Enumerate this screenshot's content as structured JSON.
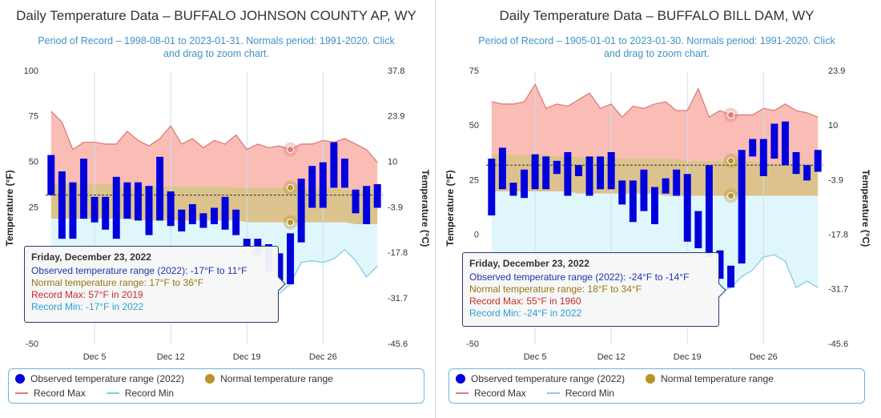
{
  "chart_data": [
    {
      "type": "range",
      "title": "Daily Temperature Data – BUFFALO JOHNSON COUNTY AP, WY",
      "subtitle": "Period of Record – 1998-08-01 to 2023-01-31. Normals period: 1991-2020. Click and drag to zoom chart.",
      "ylabel": "Temperature (°F)",
      "y2label": "Temperature (°C)",
      "categories": [
        null,
        null,
        null,
        null,
        "Dec 5",
        null,
        null,
        null,
        null,
        null,
        null,
        "Dec 12",
        null,
        null,
        null,
        null,
        null,
        null,
        "Dec 19",
        null,
        null,
        null,
        null,
        null,
        null,
        "Dec 26",
        null,
        null,
        null,
        null,
        null
      ],
      "ylim": [
        -50,
        100
      ],
      "yticks": [
        -50,
        -25,
        0,
        25,
        50,
        75,
        100
      ],
      "y2lim": [
        -45.6,
        37.8
      ],
      "y2ticks": [
        -45.6,
        -31.7,
        -17.8,
        -3.9,
        10,
        23.9,
        37.8
      ],
      "xgrid": true,
      "reference_line": 32,
      "series": [
        {
          "name": "Observed temperature range (2022)",
          "color": "#0000dd",
          "values": [
            [
              32,
              54
            ],
            [
              8,
              45
            ],
            [
              8,
              39
            ],
            [
              19,
              52
            ],
            [
              17,
              31
            ],
            [
              13,
              31
            ],
            [
              8,
              42
            ],
            [
              19,
              39
            ],
            [
              18,
              39
            ],
            [
              10,
              37
            ],
            [
              18,
              53
            ],
            [
              15,
              34
            ],
            [
              12,
              24
            ],
            [
              16,
              27
            ],
            [
              14,
              22
            ],
            [
              16,
              25
            ],
            [
              13,
              31
            ],
            [
              10,
              24
            ],
            [
              4,
              8
            ],
            [
              -1,
              8
            ],
            [
              -10,
              5
            ],
            [
              -15,
              0
            ],
            [
              -17,
              11
            ],
            [
              6,
              41
            ],
            [
              25,
              48
            ],
            [
              25,
              50
            ],
            [
              36,
              61
            ],
            [
              36,
              52
            ],
            [
              22,
              35
            ],
            [
              16,
              37
            ],
            [
              25,
              38
            ]
          ]
        },
        {
          "name": "Normal temperature range",
          "color": "#b8922a",
          "fill": "#dcc38d",
          "values": [
            [
              19,
              38
            ],
            [
              19,
              38
            ],
            [
              19,
              38
            ],
            [
              19,
              38
            ],
            [
              19,
              38
            ],
            [
              19,
              38
            ],
            [
              19,
              38
            ],
            [
              19,
              37
            ],
            [
              18,
              37
            ],
            [
              18,
              37
            ],
            [
              18,
              37
            ],
            [
              18,
              37
            ],
            [
              18,
              37
            ],
            [
              18,
              37
            ],
            [
              18,
              37
            ],
            [
              18,
              37
            ],
            [
              18,
              37
            ],
            [
              18,
              36
            ],
            [
              17,
              36
            ],
            [
              17,
              36
            ],
            [
              17,
              36
            ],
            [
              17,
              36
            ],
            [
              17,
              36
            ],
            [
              17,
              36
            ],
            [
              17,
              36
            ],
            [
              17,
              36
            ],
            [
              17,
              36
            ],
            [
              17,
              35
            ],
            [
              16,
              35
            ],
            [
              16,
              35
            ],
            [
              16,
              35
            ]
          ]
        },
        {
          "name": "Record Max",
          "color": "#e07a7a",
          "fill": "#f9bdb6",
          "values": [
            78,
            72,
            57,
            61,
            61,
            60,
            60,
            67,
            62,
            59,
            63,
            70,
            60,
            63,
            58,
            62,
            60,
            65,
            57,
            60,
            58,
            59,
            57,
            60,
            60,
            62,
            61,
            63,
            60,
            57,
            50
          ]
        },
        {
          "name": "Record Min",
          "color": "#86cbe6",
          "fill": "#dff7fb",
          "values": [
            -25,
            -28,
            -30,
            -22,
            -20,
            -26,
            -30,
            -28,
            -24,
            -22,
            -25,
            -30,
            -32,
            -28,
            -26,
            -30,
            -34,
            -32,
            -30,
            -28,
            -25,
            -22,
            -17,
            -5,
            -4,
            -5,
            -3,
            2,
            -4,
            -13,
            -7
          ]
        }
      ],
      "tooltip": {
        "index": 22,
        "title": "Friday, December 23, 2022",
        "lines": [
          "Observed temperature range (2022): -17°F to 11°F",
          "Normal temperature range: 17°F to 36°F",
          "Record Max: 57°F in 2019",
          "Record Min: -17°F in 2022"
        ]
      }
    },
    {
      "type": "range",
      "title": "Daily Temperature Data – BUFFALO BILL DAM, WY",
      "subtitle": "Period of Record – 1905-01-01 to 2023-01-30. Normals period: 1991-2020. Click and drag to zoom chart.",
      "ylabel": "Temperature (°F)",
      "y2label": "Temperature (°C)",
      "categories": [
        null,
        null,
        null,
        null,
        "Dec 5",
        null,
        null,
        null,
        null,
        null,
        null,
        "Dec 12",
        null,
        null,
        null,
        null,
        null,
        null,
        "Dec 19",
        null,
        null,
        null,
        null,
        null,
        null,
        "Dec 26",
        null,
        null,
        null,
        null,
        null
      ],
      "ylim": [
        -50,
        75
      ],
      "yticks": [
        -50,
        -25,
        0,
        25,
        50,
        75
      ],
      "y2lim": [
        -45.6,
        23.9
      ],
      "y2ticks": [
        -45.6,
        -31.7,
        -17.8,
        -3.9,
        10,
        23.9
      ],
      "xgrid": true,
      "reference_line": 32,
      "series": [
        {
          "name": "Observed temperature range (2022)",
          "color": "#0000dd",
          "values": [
            [
              9,
              35
            ],
            [
              21,
              40
            ],
            [
              18,
              24
            ],
            [
              17,
              30
            ],
            [
              21,
              37
            ],
            [
              21,
              36
            ],
            [
              28,
              34
            ],
            [
              18,
              38
            ],
            [
              27,
              32
            ],
            [
              18,
              36
            ],
            [
              21,
              36
            ],
            [
              21,
              38
            ],
            [
              14,
              25
            ],
            [
              6,
              25
            ],
            [
              11,
              30
            ],
            [
              5,
              22
            ],
            [
              19,
              26
            ],
            [
              18,
              30
            ],
            [
              -3,
              28
            ],
            [
              -6,
              11
            ],
            [
              -10,
              32
            ],
            [
              -20,
              -7
            ],
            [
              -24,
              -14
            ],
            [
              -13,
              39
            ],
            [
              36,
              44
            ],
            [
              27,
              44
            ],
            [
              35,
              51
            ],
            [
              32,
              52
            ],
            [
              28,
              38
            ],
            [
              25,
              32
            ],
            [
              29,
              39
            ]
          ]
        },
        {
          "name": "Normal temperature range",
          "color": "#b8922a",
          "fill": "#dcc38d",
          "values": [
            [
              20,
              37
            ],
            [
              20,
              37
            ],
            [
              20,
              37
            ],
            [
              20,
              37
            ],
            [
              20,
              37
            ],
            [
              20,
              37
            ],
            [
              20,
              36
            ],
            [
              20,
              36
            ],
            [
              19,
              36
            ],
            [
              19,
              36
            ],
            [
              19,
              36
            ],
            [
              19,
              36
            ],
            [
              19,
              35
            ],
            [
              19,
              35
            ],
            [
              19,
              35
            ],
            [
              19,
              35
            ],
            [
              18,
              35
            ],
            [
              18,
              35
            ],
            [
              18,
              34
            ],
            [
              18,
              34
            ],
            [
              18,
              34
            ],
            [
              18,
              34
            ],
            [
              18,
              34
            ],
            [
              18,
              34
            ],
            [
              18,
              34
            ],
            [
              18,
              33
            ],
            [
              18,
              33
            ],
            [
              18,
              33
            ],
            [
              18,
              33
            ],
            [
              18,
              33
            ],
            [
              18,
              33
            ]
          ]
        },
        {
          "name": "Record Max",
          "color": "#e07a7a",
          "fill": "#f9bdb6",
          "values": [
            61,
            60,
            60,
            61,
            69,
            58,
            60,
            59,
            62,
            65,
            58,
            60,
            54,
            59,
            58,
            60,
            61,
            57,
            57,
            67,
            54,
            57,
            55,
            55,
            55,
            58,
            57,
            60,
            57,
            56,
            54
          ]
        },
        {
          "name": "Record Min",
          "color": "#86cbe6",
          "fill": "#dff7fb",
          "values": [
            -28,
            -30,
            -32,
            -30,
            -27,
            -29,
            -31,
            -30,
            -28,
            -26,
            -30,
            -33,
            -35,
            -31,
            -29,
            -32,
            -34,
            -30,
            -28,
            -27,
            -25,
            -26,
            -24,
            -19,
            -16,
            -10,
            -9,
            -12,
            -24,
            -21,
            -24
          ]
        }
      ],
      "tooltip": {
        "index": 22,
        "title": "Friday, December 23, 2022",
        "lines": [
          "Observed temperature range (2022): -24°F to -14°F",
          "Normal temperature range: 18°F to 34°F",
          "Record Max: 55°F in 1960",
          "Record Min: -24°F in 2022"
        ]
      }
    }
  ]
}
